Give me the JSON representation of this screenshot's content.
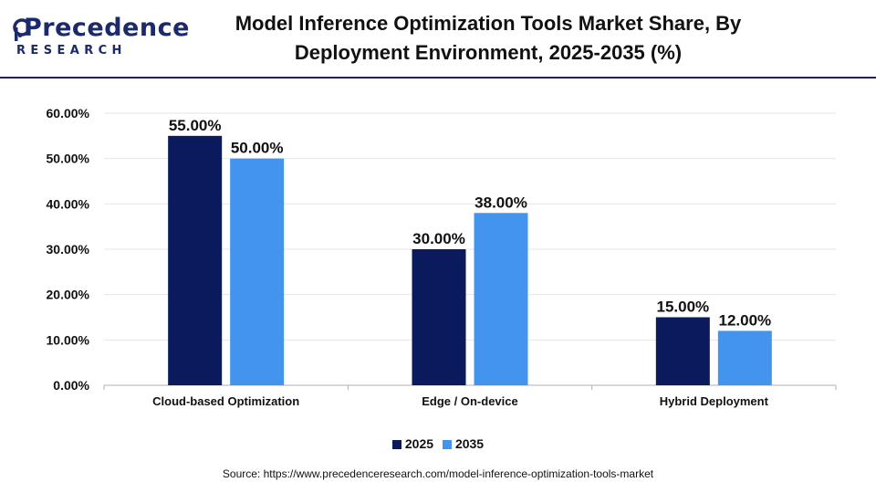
{
  "brand": {
    "name": "Precedence",
    "sub": "RESEARCH",
    "color": "#1b2a6b"
  },
  "title_line1": "Model Inference Optimization Tools Market Share, By",
  "title_line2": "Deployment Environment, 2025-2035 (%)",
  "source": "Source: https://www.precedenceresearch.com/model-inference-optimization-tools-market",
  "chart_data": {
    "type": "bar",
    "categories": [
      "Cloud-based Optimization",
      "Edge / On-device",
      "Hybrid Deployment"
    ],
    "series": [
      {
        "name": "2025",
        "values": [
          55.0,
          30.0,
          15.0
        ],
        "labels": [
          "55.00%",
          "30.00%",
          "15.00%"
        ],
        "color": "#0a1a5c"
      },
      {
        "name": "2035",
        "values": [
          50.0,
          38.0,
          12.0
        ],
        "labels": [
          "50.00%",
          "38.00%",
          "12.00%"
        ],
        "color": "#4394ec"
      }
    ],
    "ylim": [
      0,
      60
    ],
    "yticks": [
      {
        "value": 0,
        "label": "0.00%"
      },
      {
        "value": 10,
        "label": "10.00%"
      },
      {
        "value": 20,
        "label": "20.00%"
      },
      {
        "value": 30,
        "label": "30.00%"
      },
      {
        "value": 40,
        "label": "40.00%"
      },
      {
        "value": 50,
        "label": "50.00%"
      },
      {
        "value": 60,
        "label": "60.00%"
      }
    ],
    "grid": true,
    "legend_position": "bottom-center",
    "title": "Model Inference Optimization Tools Market Share, By Deployment Environment, 2025-2035 (%)",
    "xlabel": "",
    "ylabel": ""
  }
}
